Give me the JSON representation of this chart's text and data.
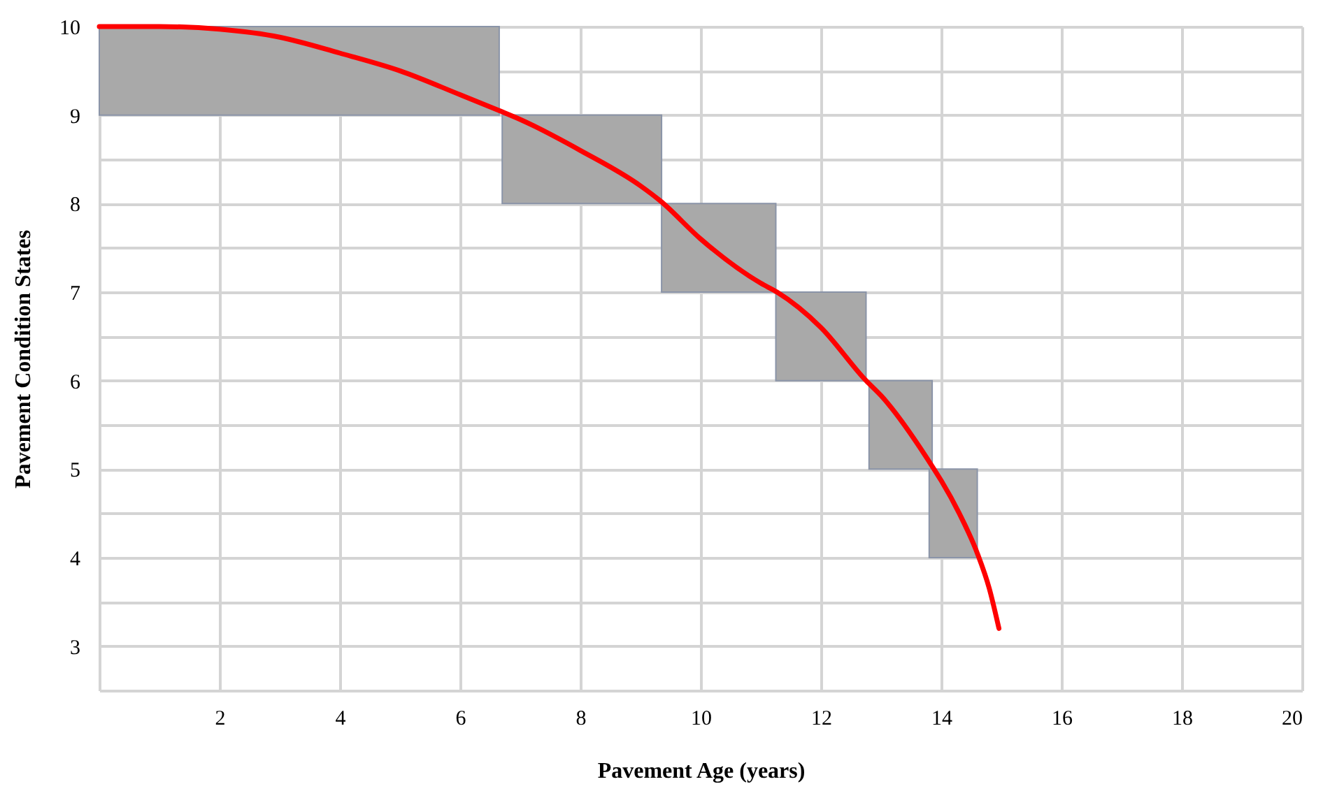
{
  "chart_data": {
    "type": "line",
    "xlabel": "Pavement Age (years)",
    "ylabel": "Pavement Condition States",
    "xlim": [
      0,
      20
    ],
    "xticks": [
      2,
      4,
      6,
      8,
      10,
      12,
      14,
      16,
      18,
      20
    ],
    "ylim": [
      2.5,
      10
    ],
    "yticks": [
      3,
      {
        "value": 3.5,
        "label": null
      },
      4,
      {
        "value": 4.5,
        "label": null
      },
      5,
      {
        "value": 5.5,
        "label": null
      },
      6,
      {
        "value": 6.5,
        "label": null
      },
      7,
      {
        "value": 7.5,
        "label": null
      },
      8,
      {
        "value": 8.5,
        "label": null
      },
      9,
      {
        "value": 9.5,
        "label": null
      },
      10
    ],
    "grid": true,
    "orientation": "horizontal",
    "series": [
      {
        "type": "bar",
        "color": "#a9a9a9",
        "x": [
          9.5,
          8.5,
          7.5,
          6.5,
          5.5,
          4.5
        ],
        "base": [
          0,
          6.7,
          9.35,
          11.25,
          12.8,
          13.8
        ],
        "values": [
          6.65,
          2.65,
          1.9,
          1.5,
          1.05,
          0.8
        ]
      },
      {
        "color": "#ff0000",
        "x": [
          10,
          10,
          9.97,
          9.88,
          9.7,
          9.5,
          9.23,
          9.05,
          8.95,
          8.6,
          8.2,
          8.03,
          7.6,
          7.1,
          7.0,
          6.6,
          6.0,
          5.83,
          5.0,
          4.87,
          4.5,
          4.05,
          3.65,
          3.2
        ],
        "values": [
          0,
          1,
          2,
          3,
          4,
          5,
          6,
          6.65,
          7,
          8,
          9,
          9.33,
          10,
          11,
          11.27,
          12,
          12.75,
          13,
          13.88,
          14,
          14.3,
          14.6,
          14.8,
          14.96
        ]
      }
    ]
  }
}
